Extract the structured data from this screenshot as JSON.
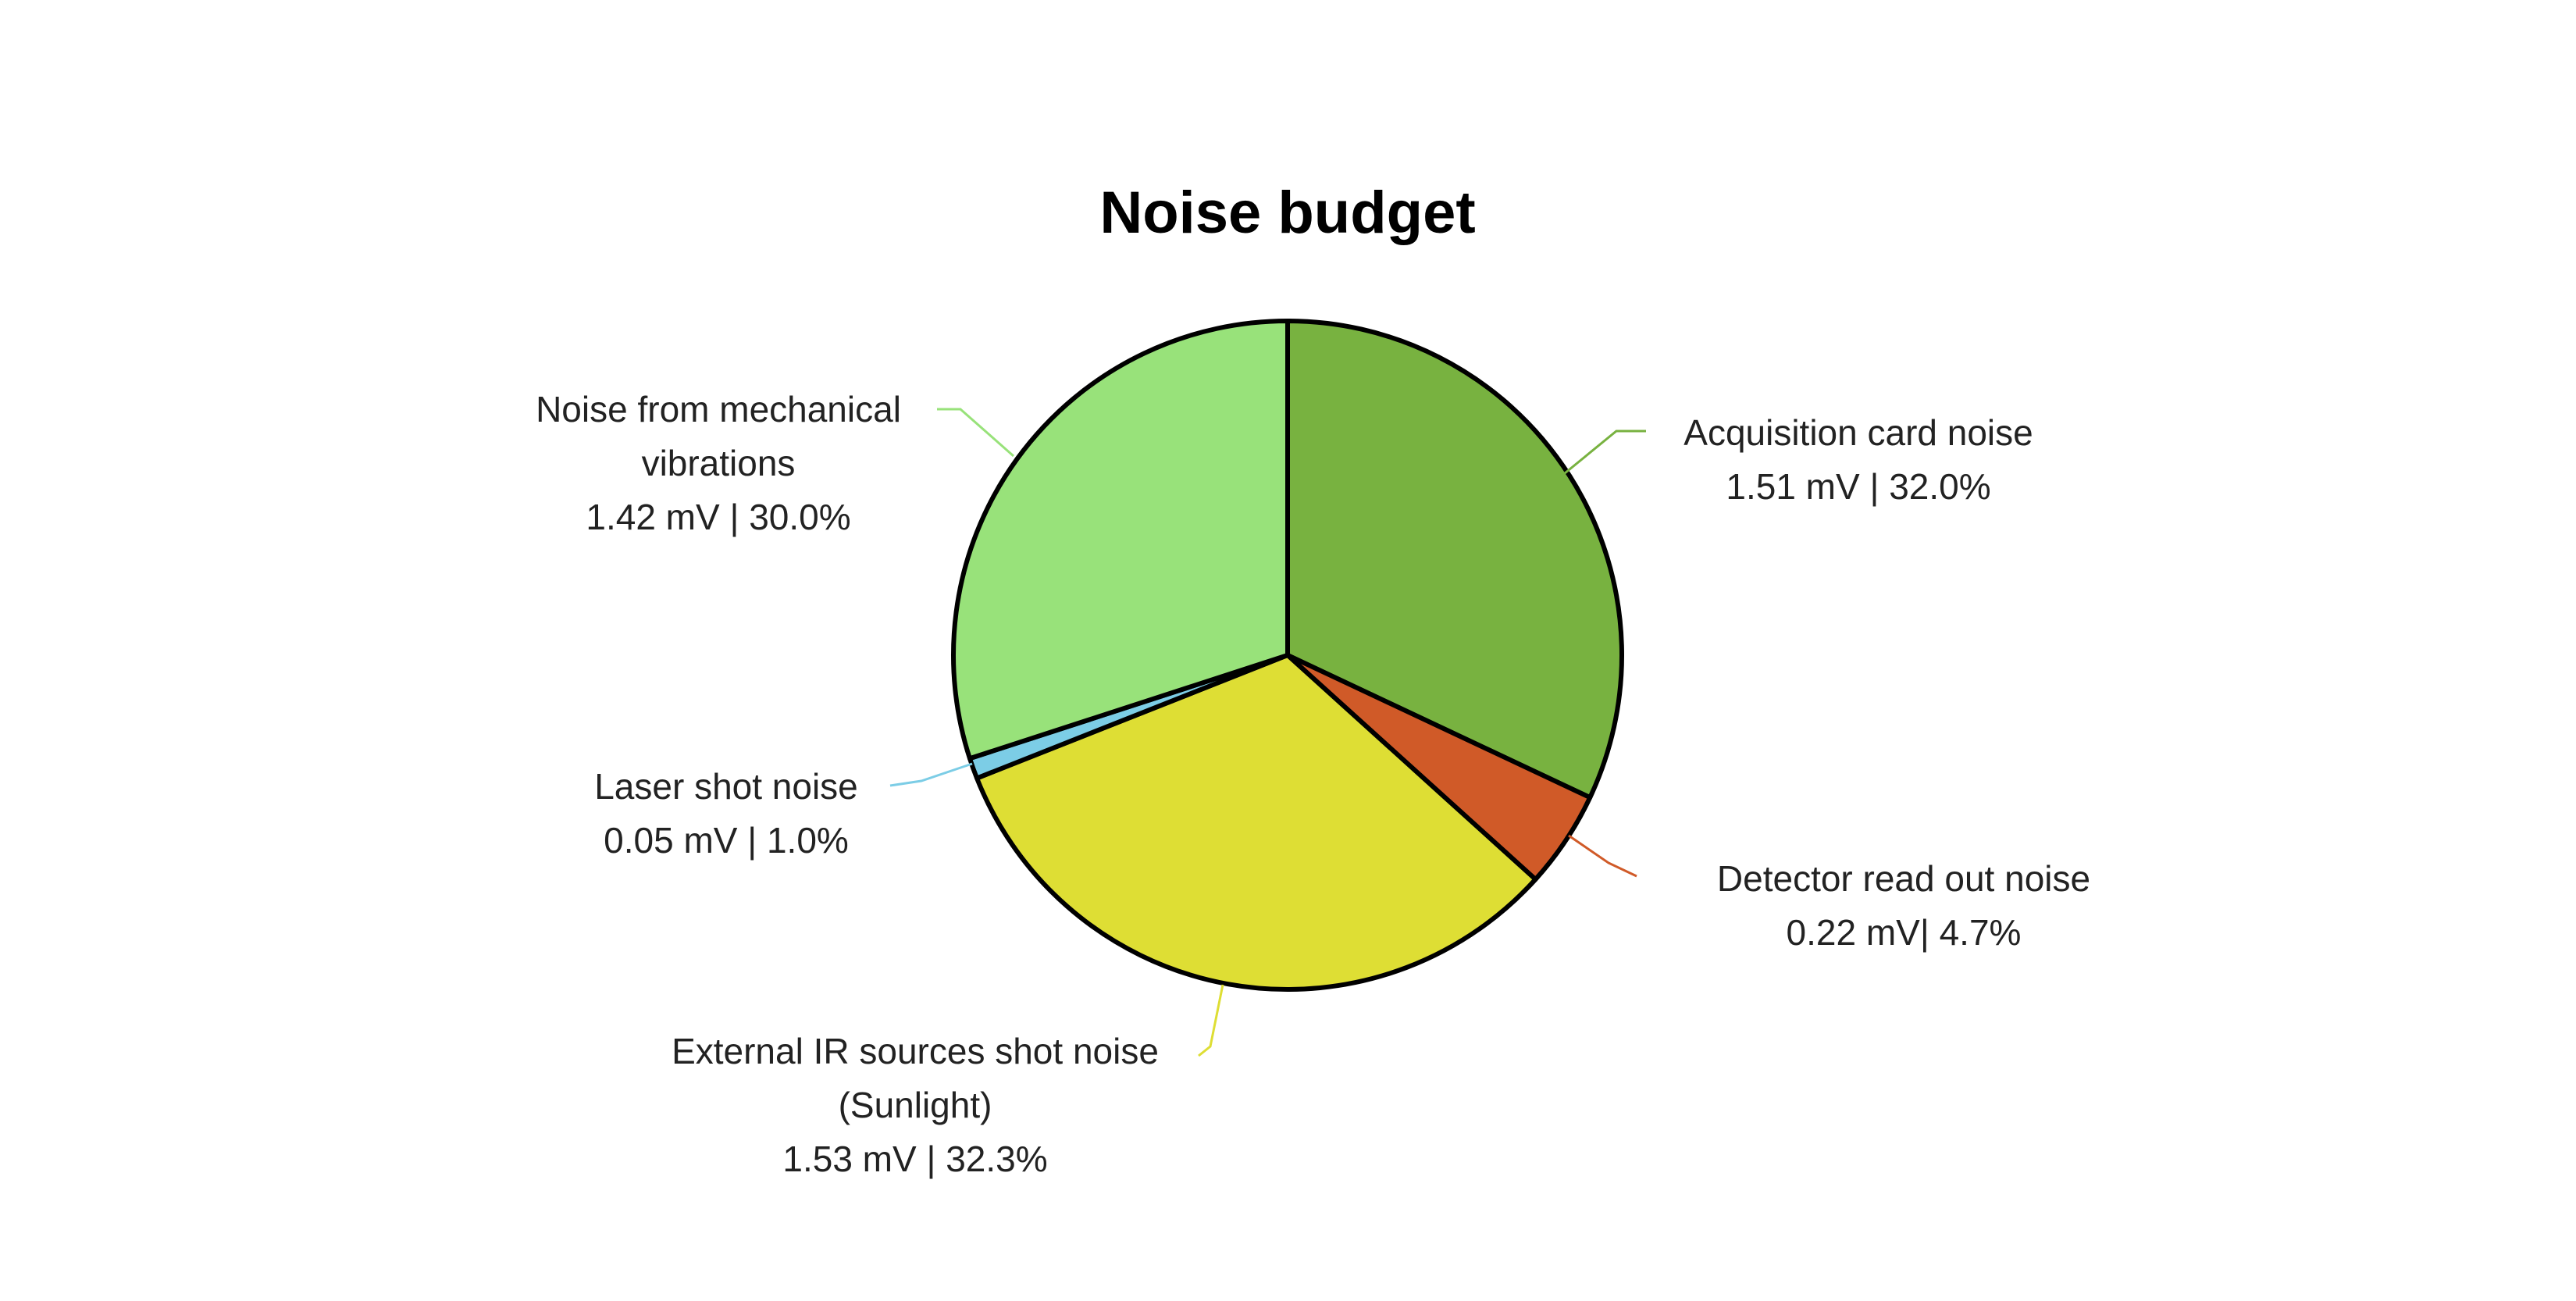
{
  "chart_data": {
    "type": "pie",
    "title": "Noise budget",
    "slices": [
      {
        "name": "Acquisition card noise",
        "lines": [
          "Acquisition card noise",
          "1.51 mV | 32.0%"
        ],
        "value": 1.51,
        "percent": 32.0,
        "color": "#78b240"
      },
      {
        "name": "Detector read out noise",
        "lines": [
          "Detector read out noise",
          "0.22 mV| 4.7%"
        ],
        "value": 0.22,
        "percent": 4.7,
        "color": "#d05a28"
      },
      {
        "name": "External IR sources shot noise (Sunlight)",
        "lines": [
          "External IR sources shot noise",
          "(Sunlight)",
          "1.53 mV | 32.3%"
        ],
        "value": 1.53,
        "percent": 32.3,
        "color": "#dede34"
      },
      {
        "name": "Laser shot noise",
        "lines": [
          "Laser shot noise",
          "0.05 mV | 1.0%"
        ],
        "value": 0.05,
        "percent": 1.0,
        "color": "#7ccde6"
      },
      {
        "name": "Noise from mechanical vibrations",
        "lines": [
          "Noise from mechanical",
          "vibrations",
          "1.42 mV | 30.0%"
        ],
        "value": 1.42,
        "percent": 30.0,
        "color": "#98e27a"
      }
    ],
    "start_angle": "12 o'clock",
    "direction": "clockwise",
    "legend": "none"
  }
}
